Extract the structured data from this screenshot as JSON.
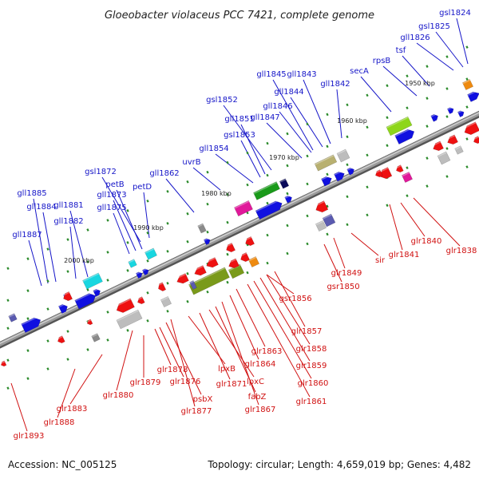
{
  "title": "Gloeobacter violaceus PCC 7421, complete genome",
  "footer": {
    "accession": "Accession: NC_005125",
    "summary": "Topology: circular; Length: 4,659,019 bp; Genes: 4,482"
  },
  "colors": {
    "forward_label": "#1515c8",
    "reverse_label": "#d01010",
    "backbone": "#8a8a8a",
    "tick": "#2a8a2a"
  },
  "scale_labels": [
    "1950 kbp",
    "1960 kbp",
    "1970 kbp",
    "1980 kbp",
    "1990 kbp",
    "2000 kbp"
  ],
  "forward_genes": [
    "gll1885",
    "gll1884",
    "gll1887",
    "gll1882",
    "gll1881",
    "gll1875",
    "gll1873",
    "gsl1872",
    "petB",
    "petD",
    "gll1862",
    "uvrB",
    "gll1854",
    "gsl1853",
    "gll1851",
    "gsl1852",
    "gll1847",
    "gll1846",
    "gll1845",
    "gll1844",
    "gll1843",
    "gll1842",
    "secA",
    "rpsB",
    "tsf",
    "gll1826",
    "gsl1825",
    "gsl1824"
  ],
  "reverse_genes": [
    "glr1893",
    "glr1888",
    "glr1883",
    "glr1880",
    "glr1879",
    "glr1878",
    "glr1876",
    "psbX",
    "glr1877",
    "lpxB",
    "glr1871",
    "lpxC",
    "fabZ",
    "glr1867",
    "glr1864",
    "glr1863",
    "glr1861",
    "glr1860",
    "glr1859",
    "glr1858",
    "glr1857",
    "gsr1856",
    "gsr1850",
    "glr1849",
    "sir",
    "glr1841",
    "glr1840",
    "glr1838"
  ]
}
